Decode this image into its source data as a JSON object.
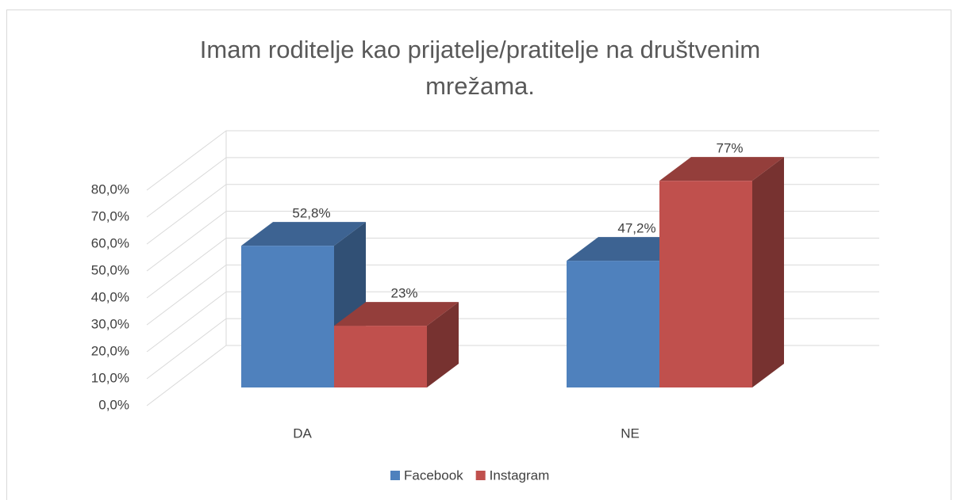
{
  "chart_data": {
    "type": "bar3d",
    "title": "Imam roditelje kao prijatelje/pratitelje na društvenim mrežama.",
    "categories": [
      "DA",
      "NE"
    ],
    "series": [
      {
        "name": "Facebook",
        "color": "#4f81bd",
        "values": [
          52.8,
          47.2
        ],
        "value_labels": [
          "52,8%",
          "47,2%"
        ]
      },
      {
        "name": "Instagram",
        "color": "#c0504d",
        "values": [
          23,
          77
        ],
        "value_labels": [
          "23%",
          "77%"
        ]
      }
    ],
    "ylim": [
      0,
      80
    ],
    "yticks": [
      {
        "value": 0,
        "label": "0,0%"
      },
      {
        "value": 10,
        "label": "10,0%"
      },
      {
        "value": 20,
        "label": "20,0%"
      },
      {
        "value": 30,
        "label": "30,0%"
      },
      {
        "value": 40,
        "label": "40,0%"
      },
      {
        "value": 50,
        "label": "50,0%"
      },
      {
        "value": 60,
        "label": "60,0%"
      },
      {
        "value": 70,
        "label": "70,0%"
      },
      {
        "value": 80,
        "label": "80,0%"
      }
    ],
    "grid": true,
    "legend": "bottom"
  }
}
